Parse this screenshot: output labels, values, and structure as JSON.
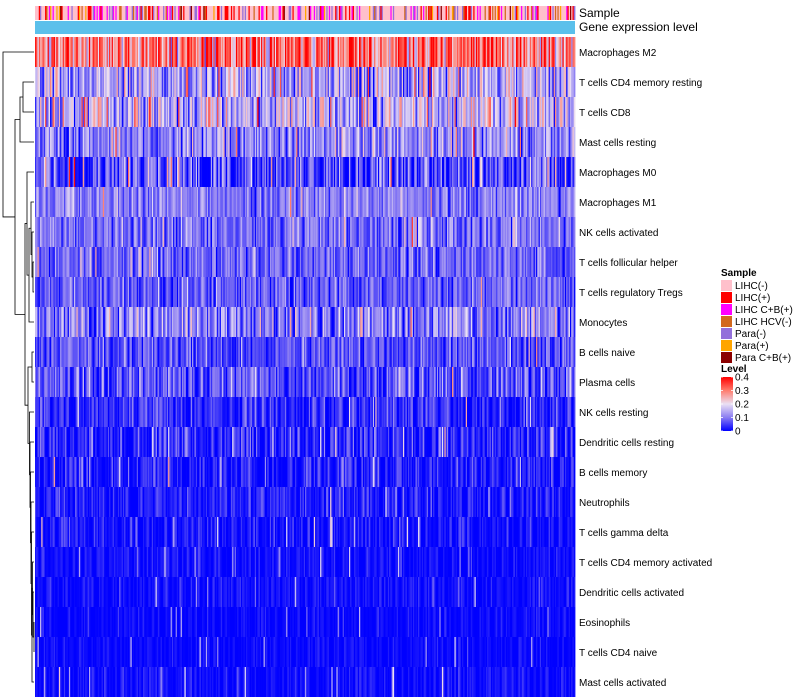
{
  "chart_data": {
    "type": "heatmap",
    "title": "",
    "annotation_tracks": [
      {
        "name": "Sample",
        "label": "Sample"
      },
      {
        "name": "Gene expression level",
        "label": "Gene expression level",
        "color": "#5bc0eb"
      }
    ],
    "rows": [
      {
        "name": "Macrophages M2",
        "mean": 0.3,
        "sd": 0.09
      },
      {
        "name": "T cells CD4 memory resting",
        "mean": 0.14,
        "sd": 0.07
      },
      {
        "name": "T cells CD8",
        "mean": 0.16,
        "sd": 0.08
      },
      {
        "name": "Mast cells resting",
        "mean": 0.11,
        "sd": 0.06
      },
      {
        "name": "Macrophages M0",
        "mean": 0.06,
        "sd": 0.08
      },
      {
        "name": "Macrophages M1",
        "mean": 0.1,
        "sd": 0.04
      },
      {
        "name": "NK cells activated",
        "mean": 0.09,
        "sd": 0.05
      },
      {
        "name": "T cells follicular helper",
        "mean": 0.08,
        "sd": 0.04
      },
      {
        "name": "T cells regulatory  Tregs",
        "mean": 0.07,
        "sd": 0.04
      },
      {
        "name": "Monocytes",
        "mean": 0.1,
        "sd": 0.06
      },
      {
        "name": "B cells naive",
        "mean": 0.06,
        "sd": 0.04
      },
      {
        "name": "Plasma cells",
        "mean": 0.06,
        "sd": 0.05
      },
      {
        "name": "NK cells resting",
        "mean": 0.03,
        "sd": 0.04
      },
      {
        "name": "Dendritic cells resting",
        "mean": 0.03,
        "sd": 0.04
      },
      {
        "name": "B cells memory",
        "mean": 0.02,
        "sd": 0.04
      },
      {
        "name": "Neutrophils",
        "mean": 0.02,
        "sd": 0.03
      },
      {
        "name": "T cells gamma delta",
        "mean": 0.01,
        "sd": 0.03
      },
      {
        "name": "T cells CD4 memory activated",
        "mean": 0.01,
        "sd": 0.02
      },
      {
        "name": "Dendritic cells activated",
        "mean": 0.01,
        "sd": 0.02
      },
      {
        "name": "Eosinophils",
        "mean": 0.004,
        "sd": 0.015
      },
      {
        "name": "T cells CD4 naive",
        "mean": 0.004,
        "sd": 0.015
      },
      {
        "name": "Mast cells activated",
        "mean": 0.008,
        "sd": 0.02
      }
    ],
    "n_samples": 430,
    "color_scale": {
      "min": 0,
      "max": 0.4,
      "stops": [
        {
          "value": 0,
          "color": "#0000ff"
        },
        {
          "value": 0.1,
          "color": "#8a7cf2"
        },
        {
          "value": 0.2,
          "color": "#eae0f4"
        },
        {
          "value": 0.3,
          "color": "#ff7d6e"
        },
        {
          "value": 0.4,
          "color": "#ff0000"
        }
      ]
    },
    "sample_legend": {
      "title": "Sample",
      "items": [
        {
          "label": "LIHC(-)",
          "color": "#ffc0cb"
        },
        {
          "label": "LIHC(+)",
          "color": "#ff0000"
        },
        {
          "label": "LIHC C+B(+)",
          "color": "#ff00ff"
        },
        {
          "label": "LIHC HCV(-)",
          "color": "#d2691e"
        },
        {
          "label": "Para(-)",
          "color": "#9370db"
        },
        {
          "label": "Para(+)",
          "color": "#ffa500"
        },
        {
          "label": "Para C+B(+)",
          "color": "#8b0000"
        }
      ],
      "weights": [
        0.55,
        0.12,
        0.1,
        0.06,
        0.11,
        0.03,
        0.03
      ]
    },
    "level_legend": {
      "title": "Level",
      "ticks": [
        "0.4",
        "0.3",
        "0.2",
        "0.1",
        "0"
      ],
      "tick_values": [
        0.4,
        0.3,
        0.2,
        0.1,
        0
      ]
    },
    "dendrogram": "hierarchical clustering of rows"
  }
}
